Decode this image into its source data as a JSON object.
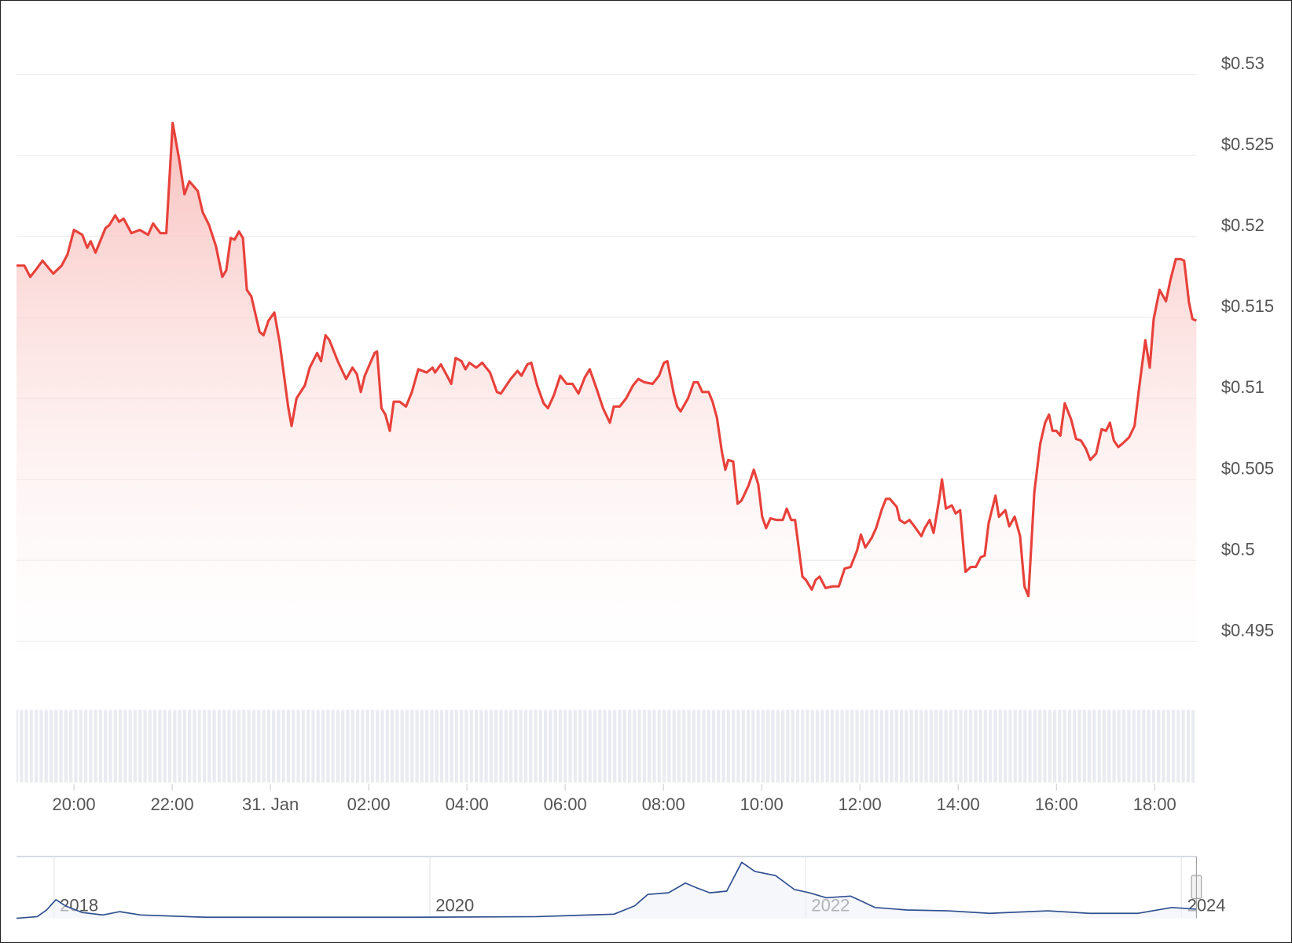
{
  "chart_data": [
    {
      "type": "line",
      "color": "#e8413b",
      "grid": true,
      "x": [
        18.83,
        18.99,
        19.11,
        19.24,
        19.36,
        19.58,
        19.75,
        19.87,
        20.0,
        20.17,
        20.27,
        20.34,
        20.44,
        20.64,
        20.72,
        20.84,
        20.92,
        21.01,
        21.17,
        21.34,
        21.51,
        21.61,
        21.76,
        21.88,
        22.01,
        22.15,
        22.25,
        22.35,
        22.52,
        22.62,
        22.75,
        22.89,
        23.02,
        23.1,
        23.19,
        23.27,
        23.36,
        23.44,
        23.52,
        23.61,
        23.78,
        23.86,
        23.96,
        24.08,
        24.19,
        24.36,
        24.43,
        24.53,
        24.7,
        24.8,
        24.95,
        25.03,
        25.12,
        25.2,
        25.37,
        25.54,
        25.67,
        25.76,
        25.84,
        25.92,
        26.12,
        26.17,
        26.26,
        26.34,
        26.43,
        26.51,
        26.63,
        26.76,
        26.88,
        27.01,
        27.18,
        27.3,
        27.35,
        27.47,
        27.63,
        27.68,
        27.77,
        27.89,
        27.97,
        28.05,
        28.19,
        28.31,
        28.47,
        28.61,
        28.69,
        28.89,
        29.03,
        29.11,
        29.23,
        29.31,
        29.43,
        29.56,
        29.65,
        29.77,
        29.9,
        30.03,
        30.15,
        30.27,
        30.4,
        30.5,
        30.65,
        30.77,
        30.91,
        30.99,
        31.11,
        31.24,
        31.38,
        31.49,
        31.61,
        31.78,
        31.91,
        32.01,
        32.08,
        32.21,
        32.28,
        32.35,
        32.5,
        32.62,
        32.7,
        32.79,
        32.92,
        33.0,
        33.09,
        33.19,
        33.26,
        33.32,
        33.42,
        33.51,
        33.59,
        33.73,
        33.84,
        33.93,
        34.01,
        34.09,
        34.18,
        34.3,
        34.43,
        34.51,
        34.6,
        34.68,
        34.83,
        34.9,
        35.02,
        35.1,
        35.18,
        35.3,
        35.44,
        35.57,
        35.69,
        35.81,
        35.94,
        36.02,
        36.11,
        36.24,
        36.33,
        36.44,
        36.53,
        36.61,
        36.75,
        36.81,
        36.91,
        37.01,
        37.11,
        37.25,
        37.32,
        37.42,
        37.5,
        37.62,
        37.67,
        37.75,
        37.87,
        37.95,
        38.04,
        38.15,
        38.26,
        38.36,
        38.46,
        38.54,
        38.62,
        38.76,
        38.83,
        38.96,
        39.04,
        39.15,
        39.26,
        39.35,
        39.43,
        39.55,
        39.67,
        39.77,
        39.85,
        39.92,
        40.0,
        40.08,
        40.17,
        40.3,
        40.4,
        40.5,
        40.6,
        40.69,
        40.81,
        40.92,
        41.01,
        41.09,
        41.17,
        41.26,
        41.34,
        41.48,
        41.59,
        41.69,
        41.81,
        41.9,
        41.98,
        42.1,
        42.23,
        42.32,
        42.43,
        42.53,
        42.6,
        42.7,
        42.77,
        42.85
      ],
      "values": [
        0.5182,
        0.5182,
        0.5175,
        0.518,
        0.5185,
        0.5177,
        0.5182,
        0.5189,
        0.5204,
        0.5201,
        0.5193,
        0.5197,
        0.519,
        0.5205,
        0.5207,
        0.5213,
        0.5209,
        0.5211,
        0.5202,
        0.5204,
        0.5201,
        0.5208,
        0.5202,
        0.5202,
        0.527,
        0.5246,
        0.5226,
        0.5234,
        0.5228,
        0.5215,
        0.5207,
        0.5194,
        0.5175,
        0.5179,
        0.5199,
        0.5198,
        0.5203,
        0.5199,
        0.5167,
        0.5163,
        0.5141,
        0.5139,
        0.5148,
        0.5153,
        0.5134,
        0.5095,
        0.5083,
        0.51,
        0.5108,
        0.5119,
        0.5128,
        0.5123,
        0.5139,
        0.5136,
        0.5123,
        0.5112,
        0.5119,
        0.5115,
        0.5104,
        0.5114,
        0.5128,
        0.5129,
        0.5094,
        0.509,
        0.508,
        0.5098,
        0.5098,
        0.5095,
        0.5104,
        0.5118,
        0.5116,
        0.5119,
        0.5116,
        0.5121,
        0.5112,
        0.5109,
        0.5125,
        0.5123,
        0.5118,
        0.5122,
        0.5119,
        0.5122,
        0.5116,
        0.5104,
        0.5103,
        0.5112,
        0.5117,
        0.5114,
        0.5121,
        0.5122,
        0.5108,
        0.5097,
        0.5094,
        0.5102,
        0.5114,
        0.5109,
        0.5109,
        0.5103,
        0.5113,
        0.5118,
        0.5105,
        0.5094,
        0.5085,
        0.5095,
        0.5095,
        0.51,
        0.5108,
        0.5112,
        0.511,
        0.5109,
        0.5114,
        0.5122,
        0.5123,
        0.5103,
        0.5095,
        0.5092,
        0.51,
        0.511,
        0.511,
        0.5104,
        0.5104,
        0.5098,
        0.5088,
        0.5067,
        0.5056,
        0.5062,
        0.5061,
        0.5035,
        0.5037,
        0.5046,
        0.5056,
        0.5047,
        0.5027,
        0.502,
        0.5026,
        0.5025,
        0.5025,
        0.5032,
        0.5025,
        0.5025,
        0.499,
        0.4988,
        0.4982,
        0.4988,
        0.499,
        0.4983,
        0.4984,
        0.4984,
        0.4995,
        0.4996,
        0.5006,
        0.5016,
        0.5008,
        0.5014,
        0.502,
        0.5031,
        0.5038,
        0.5038,
        0.5033,
        0.5025,
        0.5023,
        0.5025,
        0.5021,
        0.5015,
        0.502,
        0.5025,
        0.5017,
        0.5039,
        0.505,
        0.5032,
        0.5034,
        0.5029,
        0.5031,
        0.4993,
        0.4996,
        0.4996,
        0.5002,
        0.5003,
        0.5023,
        0.504,
        0.5027,
        0.5031,
        0.5021,
        0.5027,
        0.5015,
        0.4984,
        0.4978,
        0.5042,
        0.5072,
        0.5085,
        0.509,
        0.508,
        0.508,
        0.5077,
        0.5097,
        0.5087,
        0.5075,
        0.5074,
        0.5069,
        0.5062,
        0.5066,
        0.5081,
        0.508,
        0.5085,
        0.5074,
        0.507,
        0.5072,
        0.5076,
        0.5083,
        0.5108,
        0.5136,
        0.5119,
        0.5149,
        0.5167,
        0.516,
        0.5173,
        0.5186,
        0.5186,
        0.5185,
        0.5159,
        0.5149,
        0.5148
      ],
      "xlim": [
        18.83,
        42.85
      ],
      "ylim": [
        0.4936,
        0.5324
      ],
      "xticks": [
        {
          "value": 20,
          "label": "20:00"
        },
        {
          "value": 22,
          "label": "22:00"
        },
        {
          "value": 24,
          "label": "31. Jan"
        },
        {
          "value": 26,
          "label": "02:00"
        },
        {
          "value": 28,
          "label": "04:00"
        },
        {
          "value": 30,
          "label": "06:00"
        },
        {
          "value": 32,
          "label": "08:00"
        },
        {
          "value": 34,
          "label": "10:00"
        },
        {
          "value": 36,
          "label": "12:00"
        },
        {
          "value": 38,
          "label": "14:00"
        },
        {
          "value": 40,
          "label": "16:00"
        },
        {
          "value": 42,
          "label": "18:00"
        }
      ],
      "yticks": [
        {
          "value": 0.495,
          "label": "$0.495"
        },
        {
          "value": 0.5,
          "label": "$0.5"
        },
        {
          "value": 0.505,
          "label": "$0.505"
        },
        {
          "value": 0.51,
          "label": "$0.51"
        },
        {
          "value": 0.515,
          "label": "$0.515"
        },
        {
          "value": 0.52,
          "label": "$0.52"
        },
        {
          "value": 0.525,
          "label": "$0.525"
        },
        {
          "value": 0.53,
          "label": "$0.53"
        }
      ]
    },
    {
      "type": "line",
      "color": "#2f4f8f",
      "x": [
        2017.8,
        2017.91,
        2017.96,
        2018.01,
        2018.06,
        2018.15,
        2018.26,
        2018.35,
        2018.46,
        2018.81,
        2019.9,
        2020.57,
        2020.98,
        2021.09,
        2021.16,
        2021.27,
        2021.36,
        2021.42,
        2021.49,
        2021.58,
        2021.66,
        2021.73,
        2021.84,
        2021.94,
        2022.02,
        2022.11,
        2022.24,
        2022.37,
        2022.54,
        2022.76,
        2022.98,
        2023.29,
        2023.51,
        2023.77,
        2023.95,
        2024.08
      ],
      "values": [
        0,
        0.08,
        0.4,
        0.9,
        0.6,
        0.28,
        0.16,
        0.32,
        0.16,
        0.05,
        0.05,
        0.08,
        0.2,
        0.6,
        1.15,
        1.23,
        1.7,
        1.47,
        1.23,
        1.31,
        2.7,
        2.26,
        2.06,
        1.39,
        1.23,
        0.99,
        1.07,
        0.52,
        0.4,
        0.36,
        0.24,
        0.36,
        0.24,
        0.24,
        0.52,
        0.44
      ],
      "xlim": [
        2017.8,
        2024.08
      ],
      "ylim": [
        0,
        2.9
      ],
      "xticks": [
        2018,
        2020,
        2022,
        2024
      ]
    }
  ]
}
